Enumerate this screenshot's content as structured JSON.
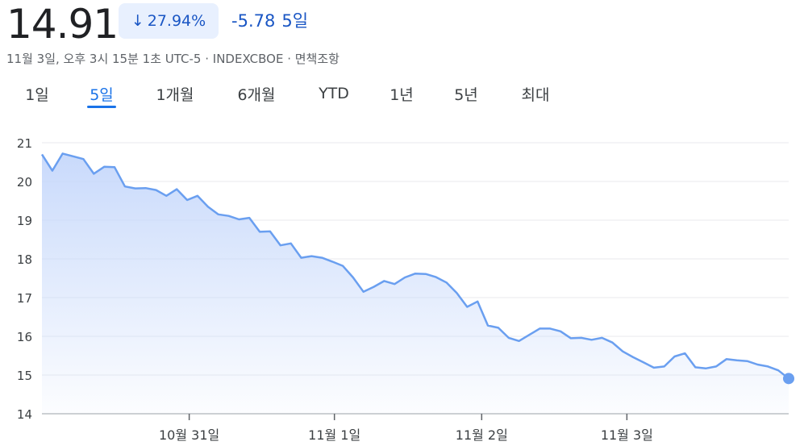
{
  "quote": {
    "price": "14.91",
    "change_pct": "27.94%",
    "change_abs": "-5.78",
    "period": "5일",
    "meta": "11월 3일, 오후 3시 15분 1초 UTC-5 · INDEXCBOE · 면책조항"
  },
  "tabs": [
    {
      "label": "1일",
      "active": false
    },
    {
      "label": "5일",
      "active": true
    },
    {
      "label": "1개월",
      "active": false
    },
    {
      "label": "6개월",
      "active": false
    },
    {
      "label": "YTD",
      "active": false
    },
    {
      "label": "1년",
      "active": false
    },
    {
      "label": "5년",
      "active": false
    },
    {
      "label": "최대",
      "active": false
    }
  ],
  "colors": {
    "accent": "#1a73e8",
    "line": "#6a9ff0",
    "negative": "#1a56c4"
  },
  "chart_data": {
    "type": "area",
    "ylim": [
      14,
      21
    ],
    "y_ticks": [
      "14",
      "15",
      "16",
      "17",
      "18",
      "19",
      "20",
      "21"
    ],
    "x_tick_labels": [
      "10월 31일",
      "11월 1일",
      "11월 2일",
      "11월 3일"
    ],
    "x_tick_positions": [
      14.2,
      28.2,
      42.4,
      56.4
    ],
    "grid": true,
    "values": [
      20.7,
      20.28,
      20.72,
      20.65,
      20.58,
      20.2,
      20.38,
      20.37,
      19.87,
      19.82,
      19.83,
      19.78,
      19.63,
      19.8,
      19.52,
      19.63,
      19.35,
      19.15,
      19.11,
      19.02,
      19.06,
      18.7,
      18.71,
      18.35,
      18.4,
      18.03,
      18.07,
      18.03,
      17.93,
      17.82,
      17.52,
      17.15,
      17.28,
      17.43,
      17.35,
      17.52,
      17.62,
      17.61,
      17.53,
      17.39,
      17.12,
      16.76,
      16.9,
      16.28,
      16.22,
      15.96,
      15.88,
      16.04,
      16.2,
      16.2,
      16.13,
      15.95,
      15.96,
      15.91,
      15.96,
      15.84,
      15.61,
      15.46,
      15.33,
      15.19,
      15.22,
      15.48,
      15.56,
      15.2,
      15.17,
      15.22,
      15.41,
      15.38,
      15.36,
      15.27,
      15.22,
      15.12,
      14.91
    ]
  }
}
